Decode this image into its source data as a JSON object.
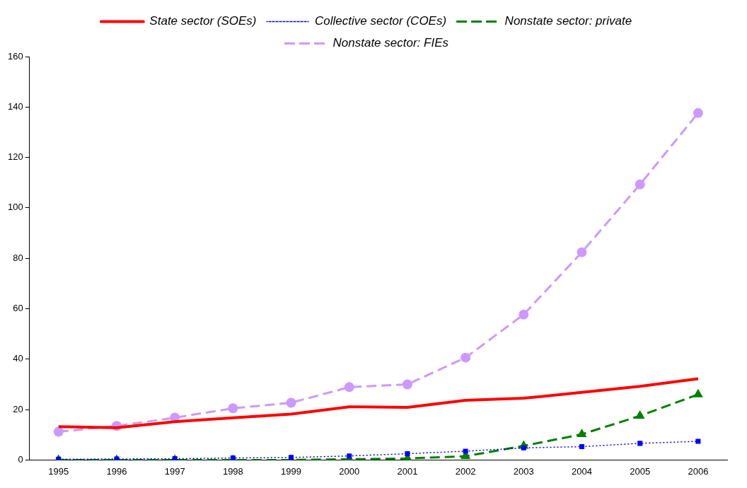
{
  "chart_data": {
    "type": "line",
    "categories": [
      "1995",
      "1996",
      "1997",
      "1998",
      "1999",
      "2000",
      "2001",
      "2002",
      "2003",
      "2004",
      "2005",
      "2006"
    ],
    "ylim": [
      0,
      160
    ],
    "yticks": [
      0,
      20,
      40,
      60,
      80,
      100,
      120,
      140,
      160
    ],
    "grid": false,
    "legend": "top",
    "series": [
      {
        "name": "State sector (SOEs)",
        "color": "#ff0000",
        "marker": "none",
        "line_style": "solid",
        "values": [
          13.2,
          12.8,
          15.2,
          16.7,
          18.2,
          21.1,
          20.9,
          23.7,
          24.5,
          26.8,
          29.2,
          32.2
        ]
      },
      {
        "name": "Collective sector (COEs)",
        "color": "#0000ff",
        "marker": "square",
        "line_style": "dotted",
        "values": [
          0.3,
          0.4,
          0.5,
          0.8,
          1.0,
          1.6,
          2.5,
          3.5,
          4.8,
          5.3,
          6.6,
          7.4
        ]
      },
      {
        "name": "Nonstate sector: private",
        "color": "#008000",
        "marker": "triangle",
        "line_style": "dashed",
        "values": [
          0,
          0,
          0,
          0,
          0,
          0.3,
          0.6,
          1.5,
          5.6,
          10.2,
          17.5,
          26
        ]
      },
      {
        "name": "Nonstate sector: FIEs",
        "color": "#cc99ff",
        "marker": "circle",
        "line_style": "dashed",
        "values": [
          11.2,
          13.5,
          16.8,
          20.5,
          22.7,
          28.9,
          30,
          40.6,
          57.7,
          82.4,
          109.3,
          137.6
        ]
      }
    ]
  }
}
